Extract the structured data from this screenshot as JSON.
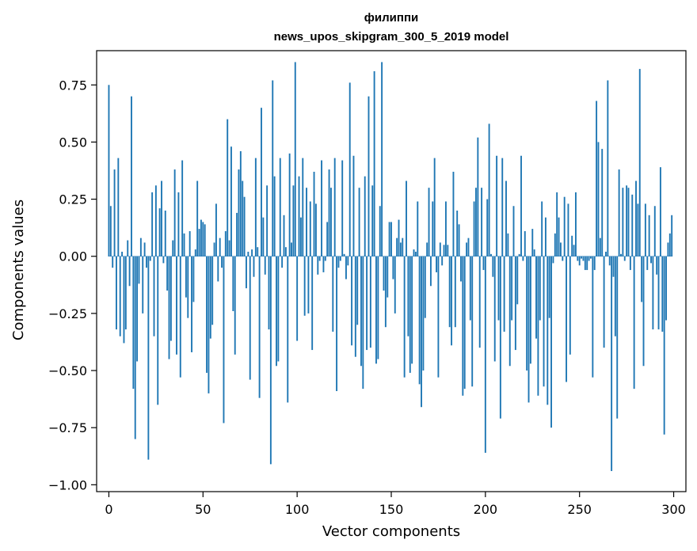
{
  "chart_data": {
    "type": "bar",
    "title": [
      "филиппи",
      "news_upos_skipgram_300_5_2019 model"
    ],
    "xlabel": "Vector components",
    "ylabel": "Components values",
    "xlim": [
      -6.5,
      306.5
    ],
    "ylim": [
      -1.03,
      0.9
    ],
    "xticks": [
      0,
      50,
      100,
      150,
      200,
      250,
      300
    ],
    "xtick_labels": [
      "0",
      "50",
      "100",
      "150",
      "200",
      "250",
      "300"
    ],
    "yticks": [
      0.75,
      0.5,
      0.25,
      0.0,
      -0.25,
      -0.5,
      -0.75,
      -1.0
    ],
    "ytick_labels": [
      "0.75",
      "0.50",
      "0.25",
      "0.00",
      "−0.25",
      "−0.50",
      "−0.75",
      "−1.00"
    ],
    "grid": false,
    "color": "#1f77b4",
    "x_start": 0,
    "values": [
      0.75,
      0.22,
      -0.05,
      0.38,
      -0.32,
      0.43,
      -0.35,
      0.02,
      -0.38,
      -0.32,
      0.07,
      -0.13,
      0.7,
      -0.58,
      -0.8,
      -0.46,
      -0.12,
      0.08,
      -0.25,
      0.06,
      -0.05,
      -0.89,
      -0.02,
      0.28,
      -0.35,
      0.31,
      -0.65,
      0.21,
      0.33,
      -0.03,
      0.2,
      -0.15,
      -0.45,
      -0.37,
      0.07,
      0.38,
      -0.43,
      0.28,
      -0.53,
      0.42,
      0.1,
      -0.18,
      -0.27,
      0.11,
      -0.42,
      -0.2,
      0.03,
      0.33,
      0.12,
      0.16,
      0.15,
      0.14,
      -0.51,
      -0.6,
      -0.36,
      -0.3,
      0.06,
      0.23,
      -0.11,
      0.08,
      -0.05,
      -0.73,
      0.11,
      0.6,
      0.07,
      0.48,
      -0.24,
      -0.43,
      0.19,
      0.38,
      0.46,
      0.33,
      0.26,
      -0.14,
      0.02,
      -0.54,
      0.03,
      -0.09,
      0.43,
      0.04,
      -0.62,
      0.65,
      0.17,
      -0.08,
      0.31,
      -0.32,
      -0.91,
      0.77,
      0.35,
      -0.48,
      -0.46,
      0.43,
      -0.05,
      0.18,
      0.04,
      -0.64,
      0.45,
      0.06,
      0.31,
      0.85,
      -0.37,
      0.35,
      0.17,
      0.43,
      -0.26,
      0.3,
      -0.25,
      0.24,
      -0.41,
      0.37,
      0.23,
      -0.08,
      -0.02,
      0.42,
      -0.07,
      -0.02,
      0.15,
      0.38,
      0.3,
      -0.33,
      0.43,
      -0.59,
      -0.05,
      -0.02,
      0.42,
      0.01,
      -0.1,
      -0.04,
      0.76,
      -0.39,
      0.44,
      -0.44,
      -0.3,
      0.3,
      -0.48,
      -0.58,
      0.35,
      -0.41,
      0.7,
      -0.4,
      0.31,
      0.81,
      -0.47,
      -0.45,
      0.22,
      0.85,
      -0.15,
      -0.31,
      -0.18,
      0.15,
      0.15,
      -0.1,
      -0.25,
      0.08,
      0.16,
      0.06,
      0.08,
      -0.53,
      0.33,
      -0.35,
      -0.51,
      -0.47,
      0.03,
      0.02,
      0.24,
      -0.56,
      -0.66,
      -0.5,
      -0.27,
      0.06,
      0.3,
      -0.13,
      0.24,
      0.43,
      -0.07,
      -0.53,
      0.06,
      -0.04,
      0.05,
      0.24,
      0.05,
      -0.31,
      -0.39,
      0.37,
      -0.31,
      0.2,
      0.14,
      -0.11,
      -0.61,
      -0.58,
      0.06,
      0.08,
      -0.28,
      -0.57,
      0.24,
      0.3,
      0.52,
      -0.4,
      0.3,
      -0.06,
      -0.86,
      0.25,
      0.58,
      0.01,
      -0.09,
      -0.46,
      0.44,
      -0.28,
      -0.71,
      0.43,
      -0.33,
      0.33,
      0.1,
      -0.48,
      -0.28,
      0.22,
      -0.41,
      -0.21,
      0.01,
      0.44,
      -0.02,
      0.11,
      -0.5,
      -0.64,
      -0.47,
      0.12,
      0.03,
      -0.36,
      -0.61,
      -0.28,
      0.24,
      -0.57,
      0.17,
      -0.65,
      -0.27,
      -0.75,
      -0.03,
      0.1,
      0.28,
      0.17,
      0.06,
      -0.02,
      0.26,
      -0.55,
      0.23,
      -0.43,
      0.09,
      0.05,
      0.28,
      -0.02,
      -0.04,
      -0.01,
      -0.02,
      -0.06,
      -0.06,
      -0.02,
      -0.01,
      -0.53,
      -0.06,
      0.68,
      0.5,
      0.08,
      0.47,
      -0.4,
      0.02,
      0.77,
      -0.04,
      -0.94,
      -0.09,
      -0.35,
      -0.71,
      0.38,
      0.01,
      0.3,
      -0.02,
      0.31,
      0.3,
      -0.06,
      0.27,
      -0.58,
      0.33,
      0.23,
      0.82,
      -0.2,
      -0.48,
      0.23,
      -0.06,
      0.18,
      -0.03,
      -0.32,
      0.22,
      -0.08,
      -0.32,
      0.39,
      -0.33,
      -0.78,
      -0.28,
      0.06,
      0.1,
      0.18
    ]
  }
}
